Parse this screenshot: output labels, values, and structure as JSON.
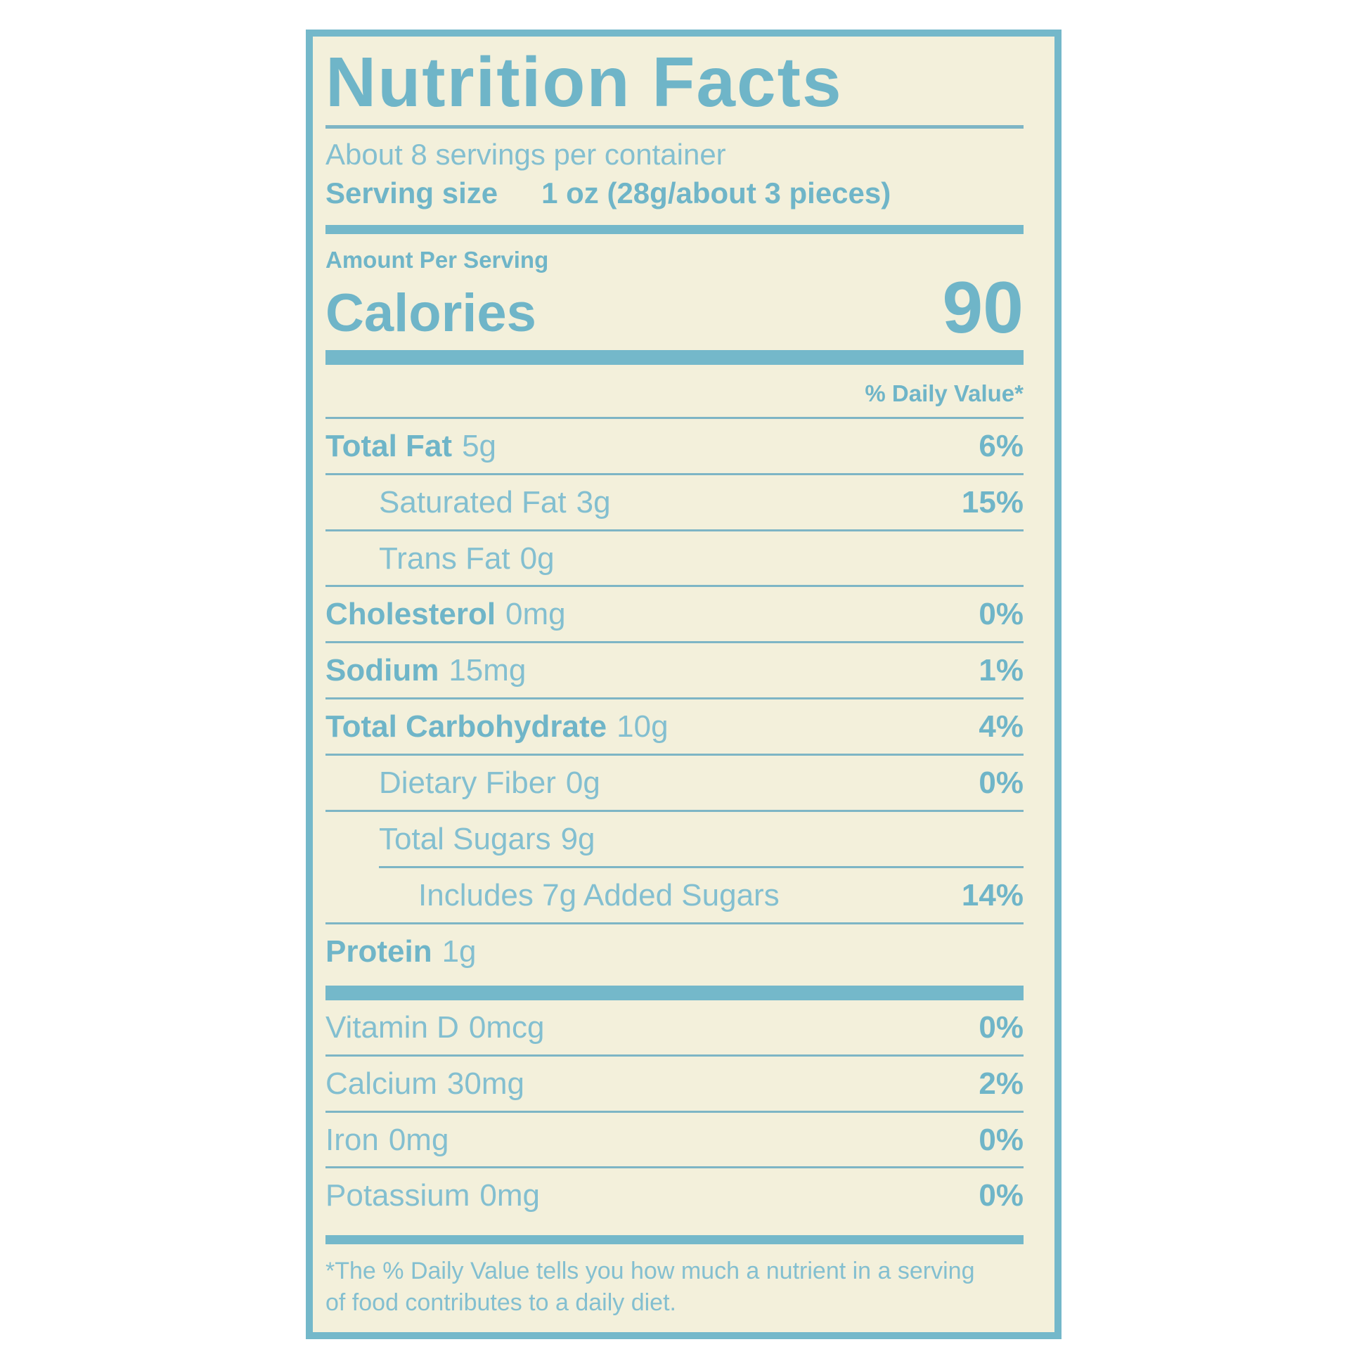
{
  "colors": {
    "page_bg": "#ffffff",
    "label_bg": "#f3f0db",
    "accent": "#74b8ca",
    "text": "#83bfd0",
    "text_bold": "#6fb5c8",
    "rule": "#7db5c5"
  },
  "label": {
    "title": "Nutrition Facts",
    "servings_per_container": "About 8 servings per container",
    "serving_size": {
      "label": "Serving size",
      "value": "1 oz (28g/about 3 pieces)"
    },
    "amount_per_serving": "Amount Per Serving",
    "calories": {
      "label": "Calories",
      "value": "90"
    },
    "daily_value_header": "% Daily Value*",
    "nutrient_rows": [
      {
        "name": "Total Fat",
        "amount": "5g",
        "percent": "6%",
        "indent": 0,
        "bold": true
      },
      {
        "name": "Saturated Fat",
        "amount": "3g",
        "percent": "15%",
        "indent": 1,
        "bold": false
      },
      {
        "name": "Trans Fat",
        "amount": "0g",
        "percent": "",
        "indent": 1,
        "bold": false
      },
      {
        "name": "Cholesterol",
        "amount": "0mg",
        "percent": "0%",
        "indent": 0,
        "bold": true
      },
      {
        "name": "Sodium",
        "amount": "15mg",
        "percent": "1%",
        "indent": 0,
        "bold": true
      },
      {
        "name": "Total Carbohydrate",
        "amount": "10g",
        "percent": "4%",
        "indent": 0,
        "bold": true
      },
      {
        "name": "Dietary Fiber",
        "amount": "0g",
        "percent": "0%",
        "indent": 1,
        "bold": false
      },
      {
        "name": "Total Sugars",
        "amount": "9g",
        "percent": "",
        "indent": 1,
        "bold": false
      },
      {
        "name": "Includes 7g Added Sugars",
        "amount": "",
        "percent": "14%",
        "indent": 2,
        "bold": false,
        "rule_above_indented": true
      },
      {
        "name": "Protein",
        "amount": "1g",
        "percent": "",
        "indent": 0,
        "bold": true
      }
    ],
    "micronutrient_rows": [
      {
        "name": "Vitamin D",
        "amount": "0mcg",
        "percent": "0%"
      },
      {
        "name": "Calcium",
        "amount": "30mg",
        "percent": "2%"
      },
      {
        "name": "Iron",
        "amount": "0mg",
        "percent": "0%"
      },
      {
        "name": "Potassium",
        "amount": "0mg",
        "percent": "0%"
      }
    ],
    "footnote": "*The % Daily Value tells you how much a nutrient in a serving of food contributes to a daily diet."
  }
}
